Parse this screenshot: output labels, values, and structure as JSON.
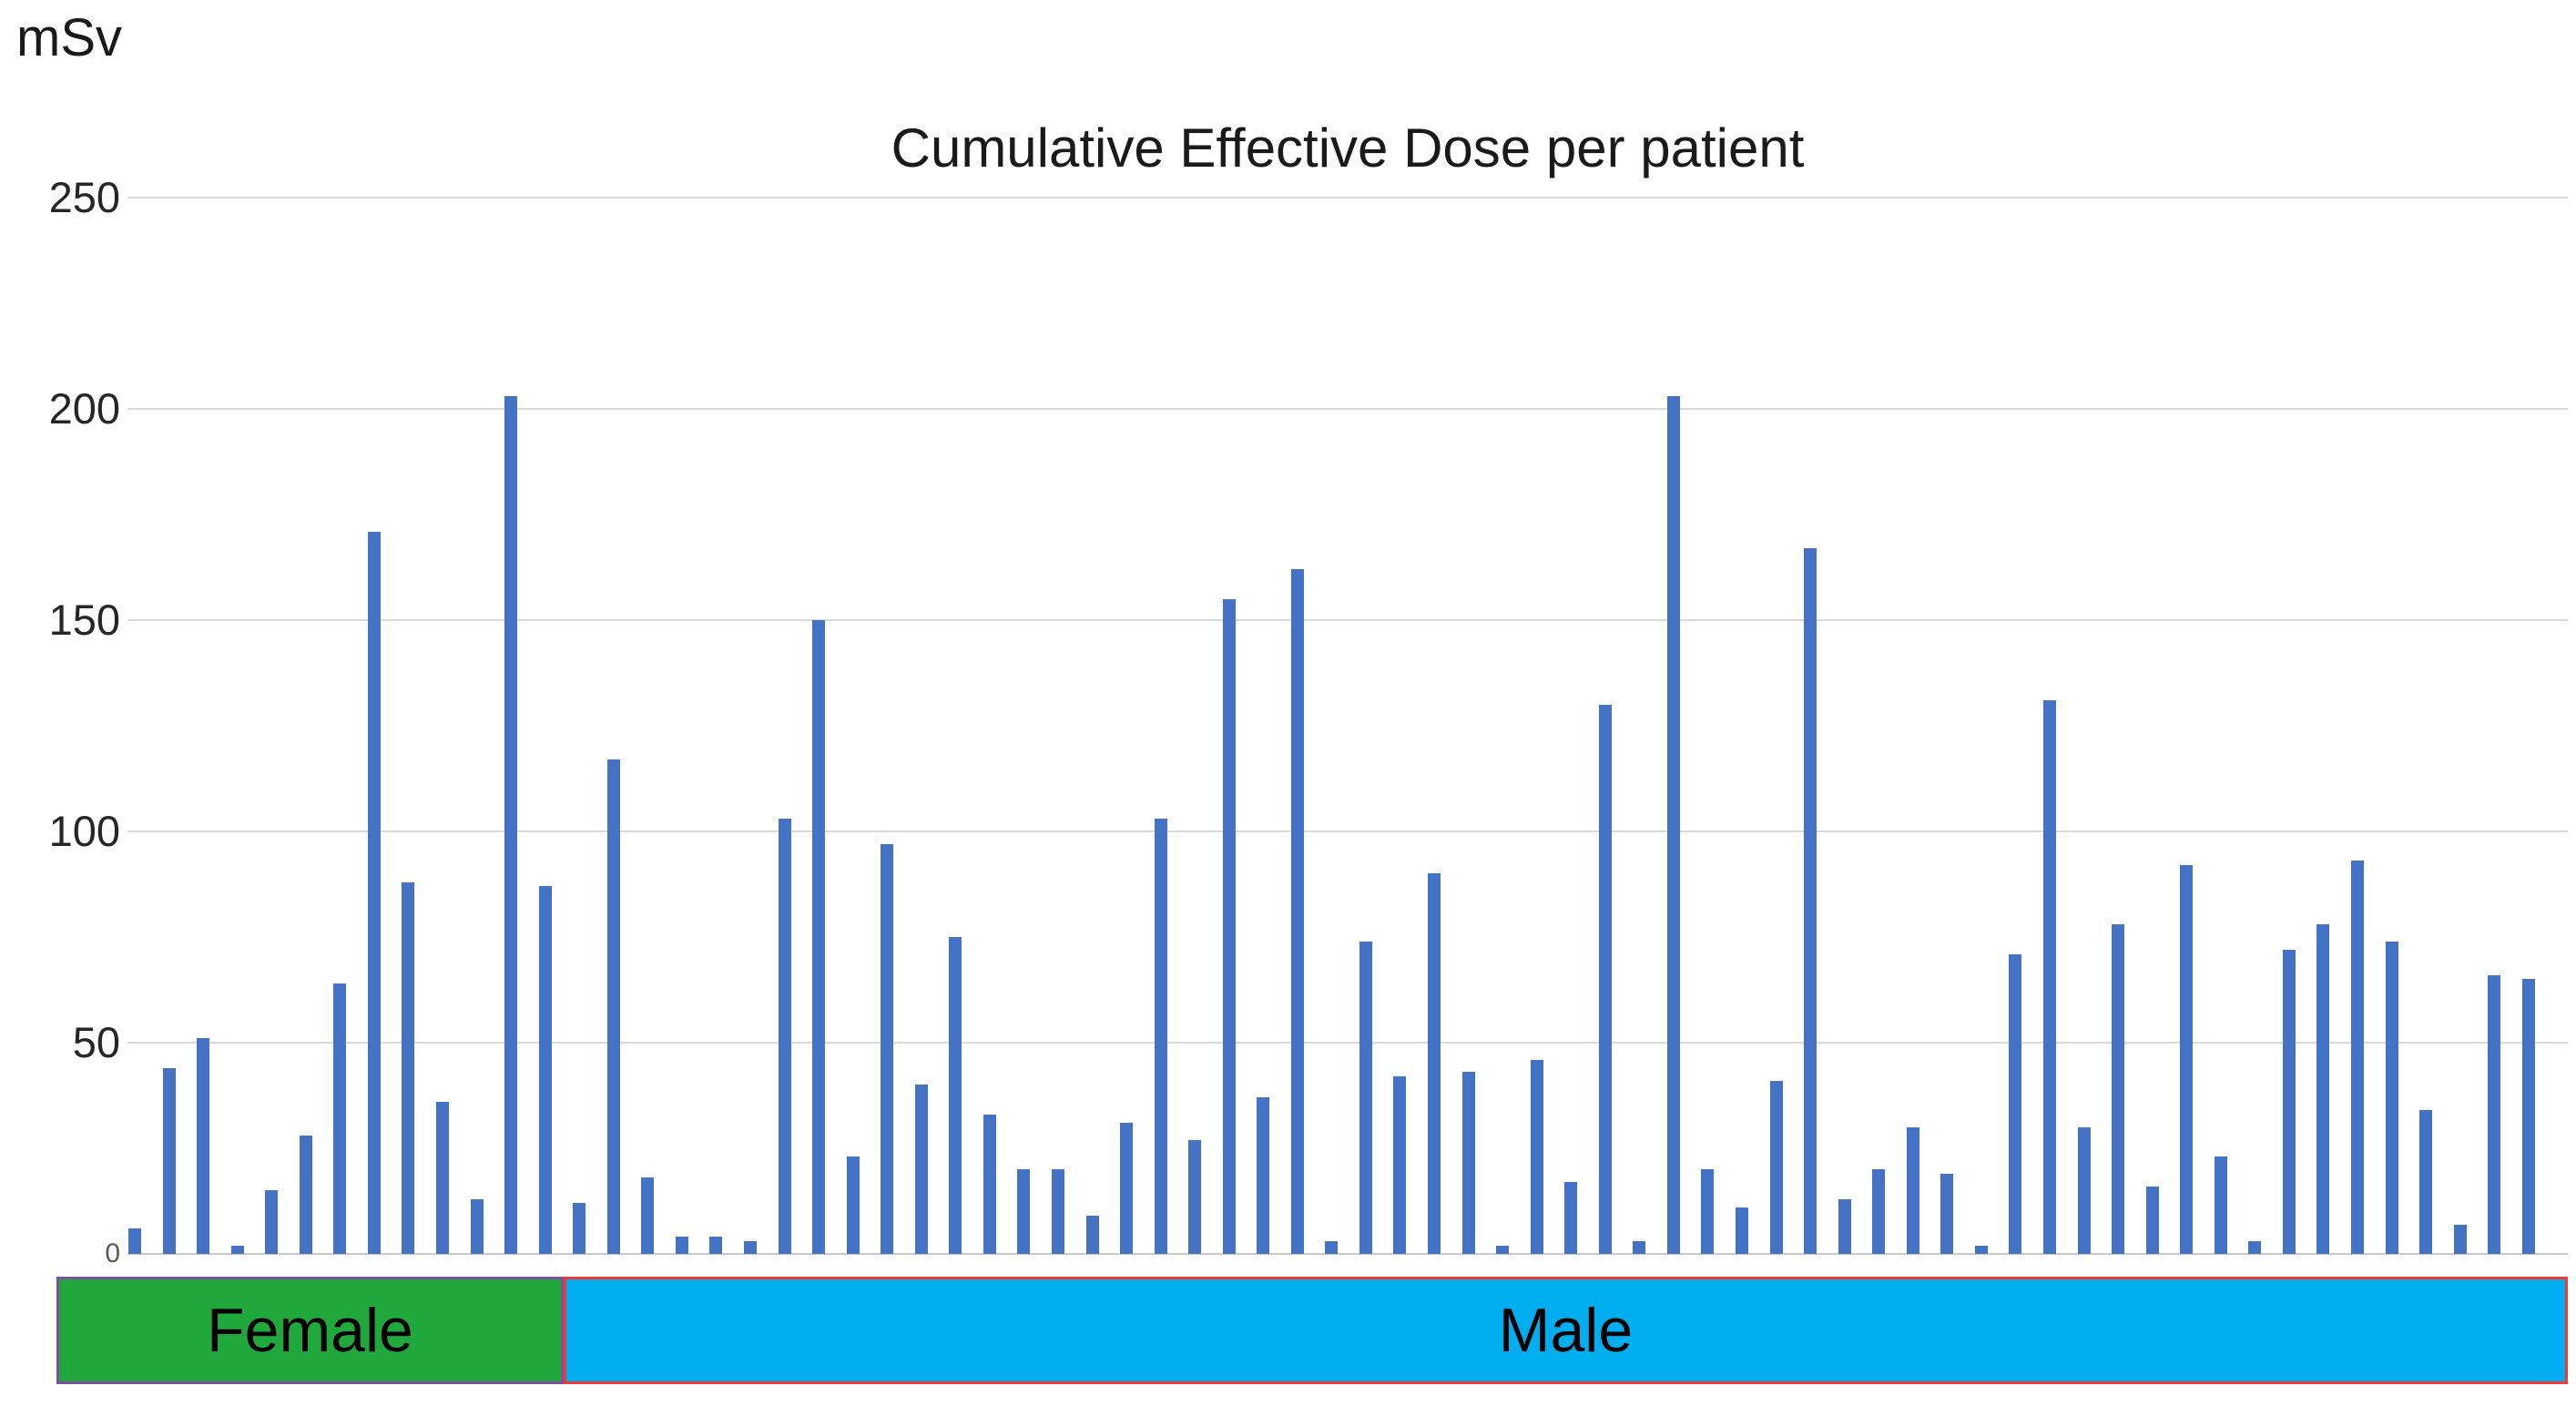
{
  "chart_data": {
    "type": "bar",
    "title": "Cumulative Effective Dose per patient",
    "unit_label": "mSv",
    "ylabel": "mSv",
    "ylim": [
      0,
      250
    ],
    "y_ticks": [
      250,
      200,
      150,
      100,
      50,
      0
    ],
    "grid": true,
    "legend": "none",
    "bar_color": "#4472C4",
    "gridline_color": "#D9D9D9",
    "groups": [
      {
        "label": "Female",
        "fill": "#21A83D",
        "border": "#7B52A0",
        "bar_count": 13
      },
      {
        "label": "Male",
        "fill": "#00AEEF",
        "border": "#EE3A33",
        "bar_count": 58
      }
    ],
    "values": [
      6,
      44,
      51,
      2,
      15,
      28,
      64,
      171,
      88,
      36,
      13,
      203,
      87,
      12,
      117,
      18,
      4,
      4,
      3,
      103,
      150,
      23,
      97,
      40,
      75,
      33,
      20,
      20,
      9,
      31,
      103,
      27,
      155,
      37,
      162,
      3,
      74,
      42,
      90,
      43,
      2,
      46,
      17,
      130,
      3,
      203,
      20,
      11,
      41,
      167,
      13,
      20,
      30,
      19,
      2,
      71,
      131,
      30,
      78,
      16,
      92,
      23,
      3,
      72,
      78,
      93,
      74,
      34,
      7,
      66,
      65
    ]
  }
}
